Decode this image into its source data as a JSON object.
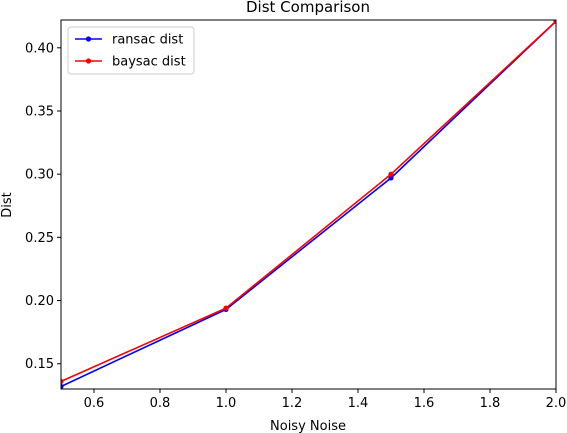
{
  "chart_data": {
    "type": "line",
    "title": "Dist Comparison",
    "xlabel": "Noisy Noise",
    "ylabel": "Dist",
    "xlim": [
      0.5,
      2.0
    ],
    "ylim": [
      0.13,
      0.422
    ],
    "xticks": [
      0.6,
      0.8,
      1.0,
      1.2,
      1.4,
      1.6,
      1.8,
      2.0
    ],
    "xtick_labels": [
      "0.6",
      "0.8",
      "1.0",
      "1.2",
      "1.4",
      "1.6",
      "1.8",
      "2.0"
    ],
    "yticks": [
      0.15,
      0.2,
      0.25,
      0.3,
      0.35,
      0.4
    ],
    "ytick_labels": [
      "0.15",
      "0.20",
      "0.25",
      "0.30",
      "0.35",
      "0.40"
    ],
    "grid": false,
    "legend_position": "top-left",
    "x": [
      0.5,
      1.0,
      1.5,
      2.0
    ],
    "series": [
      {
        "name": "ransac dist",
        "color": "#0000ff",
        "values": [
          0.132,
          0.193,
          0.297,
          0.421
        ]
      },
      {
        "name": "baysac dist",
        "color": "#ff0000",
        "values": [
          0.136,
          0.194,
          0.3,
          0.421
        ]
      }
    ]
  }
}
